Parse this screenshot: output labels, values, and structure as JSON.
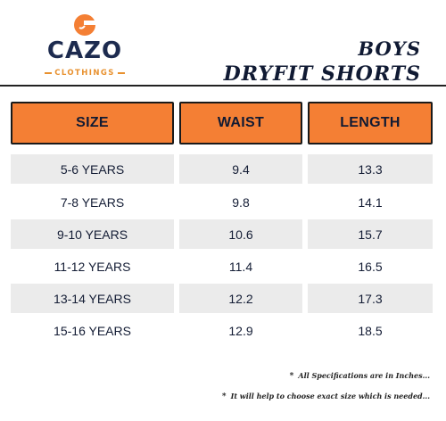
{
  "brand": {
    "name": "CAZO",
    "sub": "CLOTHINGS",
    "accent": "#f47f34",
    "navy": "#1d2b4f"
  },
  "title": {
    "line1": "BOYS",
    "line2": "DRYFIT SHORTS"
  },
  "table": {
    "headers": [
      "SIZE",
      "WAIST",
      "LENGTH"
    ],
    "rows": [
      [
        "5-6 YEARS",
        "9.4",
        "13.3"
      ],
      [
        "7-8 YEARS",
        "9.8",
        "14.1"
      ],
      [
        "9-10 YEARS",
        "10.6",
        "15.7"
      ],
      [
        "11-12 YEARS",
        "11.4",
        "16.5"
      ],
      [
        "13-14 YEARS",
        "12.2",
        "17.3"
      ],
      [
        "15-16 YEARS",
        "12.9",
        "18.5"
      ]
    ],
    "header_color": "#f47f34",
    "shade_color": "#ebebeb"
  },
  "notes": {
    "star": "*",
    "note1": "All Specifications are in Inches...",
    "note2": "It will help to choose exact size which is needed..."
  }
}
